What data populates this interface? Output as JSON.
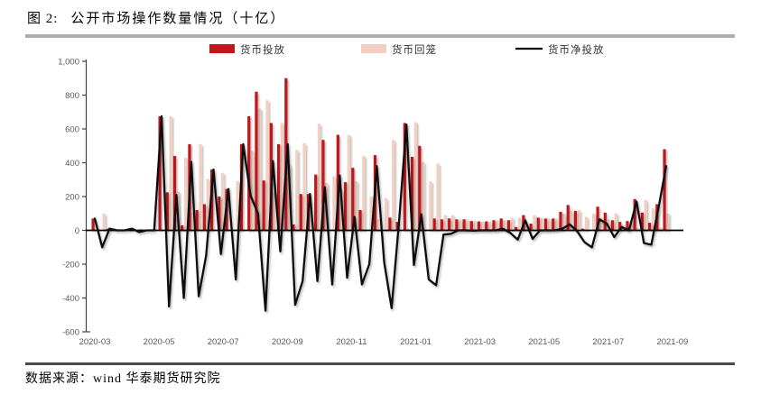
{
  "figure": {
    "label": "图 2:",
    "title": "公开市场操作数量情况（十亿）"
  },
  "source": {
    "text": "数据来源：wind 华泰期货研究院"
  },
  "chart_data": {
    "type": "bar",
    "subtype": "grouped-bars-with-line",
    "title": "公开市场操作数量情况（十亿）",
    "xlabel": "",
    "ylabel": "",
    "ylim": [
      -600,
      1000
    ],
    "grid": false,
    "legend_position": "top",
    "y_tick_values": [
      1000,
      800,
      600,
      400,
      200,
      0,
      -200,
      -400,
      -600
    ],
    "y_tick_labels": [
      "1,000",
      "800",
      "600",
      "400",
      "200",
      "0",
      "-200",
      "-400",
      "-600"
    ],
    "x_tick_labels": [
      "2020-03",
      "2020-05",
      "2020-07",
      "2020-09",
      "2020-11",
      "2021-01",
      "2021-03",
      "2021-05",
      "2021-07",
      "2021-09"
    ],
    "x": [
      "2020-03-06",
      "2020-03-13",
      "2020-03-20",
      "2020-03-27",
      "2020-04-03",
      "2020-04-10",
      "2020-04-17",
      "2020-04-24",
      "2020-05-01",
      "2020-05-08",
      "2020-05-15",
      "2020-05-22",
      "2020-05-29",
      "2020-06-05",
      "2020-06-12",
      "2020-06-19",
      "2020-06-26",
      "2020-07-03",
      "2020-07-10",
      "2020-07-17",
      "2020-07-24",
      "2020-07-31",
      "2020-08-07",
      "2020-08-14",
      "2020-08-21",
      "2020-08-28",
      "2020-09-04",
      "2020-09-11",
      "2020-09-18",
      "2020-09-25",
      "2020-10-02",
      "2020-10-09",
      "2020-10-16",
      "2020-10-23",
      "2020-10-30",
      "2020-11-06",
      "2020-11-13",
      "2020-11-20",
      "2020-11-27",
      "2020-12-04",
      "2020-12-11",
      "2020-12-18",
      "2020-12-25",
      "2021-01-01",
      "2021-01-08",
      "2021-01-15",
      "2021-01-22",
      "2021-01-29",
      "2021-02-05",
      "2021-02-12",
      "2021-02-19",
      "2021-02-26",
      "2021-03-05",
      "2021-03-12",
      "2021-03-19",
      "2021-03-26",
      "2021-04-02",
      "2021-04-09",
      "2021-04-16",
      "2021-04-23",
      "2021-04-30",
      "2021-05-07",
      "2021-05-14",
      "2021-05-21",
      "2021-05-28",
      "2021-06-04",
      "2021-06-11",
      "2021-06-18",
      "2021-06-25",
      "2021-07-02",
      "2021-07-09",
      "2021-07-16",
      "2021-07-23",
      "2021-07-30",
      "2021-08-06",
      "2021-08-13",
      "2021-08-20",
      "2021-08-27"
    ],
    "series": [
      {
        "name": "货币投放",
        "type": "bar",
        "color": "#c0161d",
        "values": [
          70,
          0,
          10,
          0,
          0,
          10,
          0,
          0,
          0,
          675,
          225,
          440,
          30,
          510,
          120,
          155,
          360,
          200,
          245,
          0,
          510,
          675,
          820,
          295,
          635,
          510,
          900,
          35,
          215,
          215,
          330,
          535,
          0,
          565,
          285,
          370,
          120,
          0,
          445,
          0,
          75,
          50,
          635,
          435,
          500,
          0,
          70,
          65,
          70,
          65,
          65,
          55,
          53,
          53,
          60,
          70,
          60,
          20,
          90,
          40,
          75,
          70,
          70,
          110,
          150,
          115,
          10,
          0,
          140,
          105,
          60,
          50,
          55,
          185,
          105,
          45,
          155,
          480
        ]
      },
      {
        "name": "货币回笼",
        "type": "bar",
        "color": "#f2cfc0",
        "values": [
          0,
          100,
          0,
          0,
          0,
          0,
          10,
          0,
          0,
          0,
          675,
          230,
          430,
          105,
          510,
          305,
          0,
          340,
          0,
          290,
          0,
          470,
          720,
          770,
          225,
          635,
          390,
          475,
          515,
          0,
          630,
          280,
          320,
          240,
          565,
          290,
          440,
          200,
          65,
          190,
          535,
          0,
          10,
          640,
          405,
          290,
          395,
          90,
          90,
          65,
          65,
          57,
          53,
          53,
          60,
          60,
          75,
          75,
          30,
          90,
          75,
          70,
          70,
          100,
          115,
          120,
          80,
          100,
          75,
          65,
          100,
          30,
          55,
          15,
          180,
          130,
          15,
          100
        ]
      },
      {
        "name": "货币净投放",
        "type": "line",
        "color": "#0d0d0d",
        "values": [
          70,
          -100,
          10,
          0,
          0,
          10,
          -10,
          0,
          0,
          675,
          -450,
          210,
          -400,
          405,
          -390,
          -150,
          360,
          -140,
          245,
          -290,
          510,
          205,
          100,
          -475,
          410,
          -125,
          510,
          -440,
          -300,
          215,
          -300,
          255,
          -320,
          325,
          -280,
          80,
          -320,
          -200,
          380,
          -190,
          -460,
          50,
          625,
          -205,
          95,
          -290,
          -325,
          -25,
          -20,
          0,
          0,
          -2,
          0,
          0,
          0,
          10,
          -15,
          -55,
          60,
          -50,
          0,
          0,
          0,
          10,
          35,
          -5,
          -70,
          -100,
          65,
          40,
          -40,
          20,
          0,
          170,
          -75,
          -85,
          140,
          380
        ]
      }
    ]
  }
}
